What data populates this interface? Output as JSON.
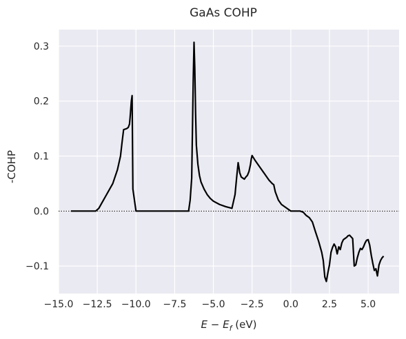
{
  "chart_data": {
    "type": "line",
    "title": "GaAs COHP",
    "xlabel_main": "E",
    "xlabel_minus": " − ",
    "xlabel_sub_base": "E",
    "xlabel_sub": "f",
    "xlabel_unit": " (eV)",
    "ylabel": "-COHP",
    "xlim": [
      -15.0,
      7.0
    ],
    "ylim": [
      -0.15,
      0.33
    ],
    "xticks": [
      -15.0,
      -12.5,
      -10.0,
      -7.5,
      -5.0,
      -2.5,
      0.0,
      2.5,
      5.0
    ],
    "xtick_labels": [
      "−15.0",
      "−12.5",
      "−10.0",
      "−7.5",
      "−5.0",
      "−2.5",
      "0.0",
      "2.5",
      "5.0"
    ],
    "yticks": [
      -0.1,
      0.0,
      0.1,
      0.2,
      0.3
    ],
    "ytick_labels": [
      "−0.1",
      "0.0",
      "0.1",
      "0.2",
      "0.3"
    ],
    "grid": true,
    "zero_line": "dotted",
    "line_color": "#000000",
    "background_color": "#eaeaf2",
    "series": [
      {
        "x": [
          -14.2,
          -13.5,
          -12.6,
          -12.4,
          -12.2,
          -11.9,
          -11.5,
          -11.2,
          -11.0,
          -10.9,
          -10.8,
          -10.6,
          -10.5,
          -10.42,
          -10.38,
          -10.3,
          -10.25,
          -10.2,
          -10.0,
          -9.0,
          -8.0,
          -7.0,
          -6.7,
          -6.6,
          -6.5,
          -6.4,
          -6.3,
          -6.25,
          -6.2,
          -6.15,
          -6.1,
          -6.0,
          -5.9,
          -5.8,
          -5.6,
          -5.4,
          -5.2,
          -5.0,
          -4.6,
          -4.2,
          -3.8,
          -3.6,
          -3.5,
          -3.4,
          -3.35,
          -3.3,
          -3.2,
          -3.1,
          -3.0,
          -2.9,
          -2.8,
          -2.7,
          -2.6,
          -2.55,
          -2.5,
          -2.3,
          -2.0,
          -1.7,
          -1.4,
          -1.2,
          -1.1,
          -1.0,
          -0.8,
          -0.6,
          -0.3,
          0.0,
          0.3,
          0.6,
          0.8,
          1.0,
          1.2,
          1.4,
          1.6,
          1.8,
          2.0,
          2.1,
          2.2,
          2.3,
          2.4,
          2.5,
          2.6,
          2.7,
          2.8,
          2.9,
          3.0,
          3.1,
          3.2,
          3.3,
          3.4,
          3.5,
          3.6,
          3.7,
          3.8,
          4.0,
          4.1,
          4.2,
          4.3,
          4.4,
          4.5,
          4.6,
          4.7,
          4.8,
          4.9,
          5.0,
          5.1,
          5.2,
          5.3,
          5.4,
          5.5,
          5.6,
          5.7,
          5.8,
          5.9,
          6.0
        ],
        "y": [
          0.0,
          0.0,
          0.0,
          0.005,
          0.015,
          0.03,
          0.05,
          0.075,
          0.1,
          0.125,
          0.148,
          0.15,
          0.152,
          0.158,
          0.17,
          0.2,
          0.21,
          0.04,
          0.0,
          0.0,
          0.0,
          0.0,
          0.0,
          0.0,
          0.02,
          0.06,
          0.24,
          0.307,
          0.26,
          0.18,
          0.12,
          0.085,
          0.065,
          0.053,
          0.04,
          0.03,
          0.023,
          0.018,
          0.012,
          0.008,
          0.005,
          0.03,
          0.06,
          0.088,
          0.08,
          0.07,
          0.062,
          0.06,
          0.058,
          0.062,
          0.065,
          0.072,
          0.085,
          0.095,
          0.101,
          0.092,
          0.08,
          0.068,
          0.056,
          0.05,
          0.048,
          0.035,
          0.02,
          0.012,
          0.006,
          0.0,
          0.0,
          0.0,
          -0.002,
          -0.008,
          -0.012,
          -0.02,
          -0.038,
          -0.055,
          -0.075,
          -0.09,
          -0.12,
          -0.128,
          -0.112,
          -0.098,
          -0.075,
          -0.066,
          -0.06,
          -0.065,
          -0.078,
          -0.065,
          -0.07,
          -0.058,
          -0.052,
          -0.05,
          -0.048,
          -0.045,
          -0.044,
          -0.05,
          -0.1,
          -0.098,
          -0.085,
          -0.075,
          -0.068,
          -0.07,
          -0.065,
          -0.058,
          -0.053,
          -0.052,
          -0.062,
          -0.08,
          -0.095,
          -0.108,
          -0.105,
          -0.118,
          -0.098,
          -0.09,
          -0.085,
          -0.082
        ]
      }
    ]
  }
}
